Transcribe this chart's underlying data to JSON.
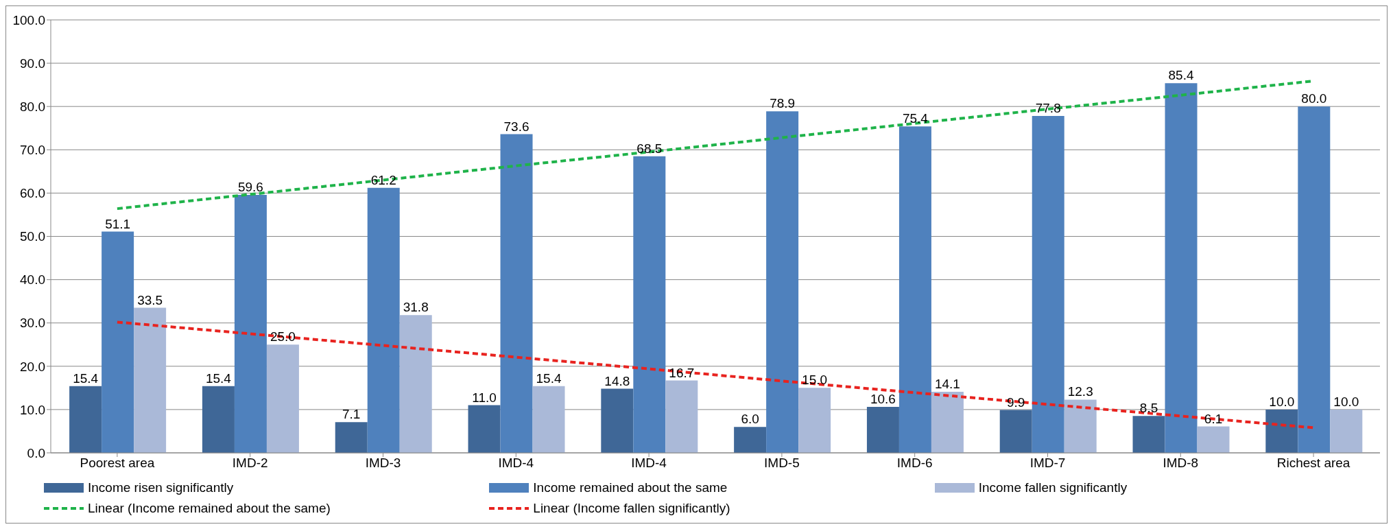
{
  "chart_data": {
    "type": "bar",
    "categories": [
      "Poorest area",
      "IMD-2",
      "IMD-3",
      "IMD-4",
      "IMD-4",
      "IMD-5",
      "IMD-6",
      "IMD-7",
      "IMD-8",
      "Richest area"
    ],
    "series": [
      {
        "name": "Income risen significantly",
        "color": "#3f6797",
        "values": [
          15.4,
          15.4,
          7.1,
          11.0,
          14.8,
          6.0,
          10.6,
          9.9,
          8.5,
          10.0
        ],
        "value_labels": [
          "15.4",
          "15.4",
          "7.1",
          "11.0",
          "14.8",
          "6.0",
          "10.6",
          "9.9",
          "8.5",
          "10.0"
        ]
      },
      {
        "name": "Income remained about the same",
        "color": "#4f81bd",
        "values": [
          51.1,
          59.6,
          61.2,
          73.6,
          68.5,
          78.9,
          75.4,
          77.8,
          85.4,
          80.0
        ],
        "value_labels": [
          "51.1",
          "59.6",
          "61.2",
          "73.6",
          "68.5",
          "78.9",
          "75.4",
          "77.8",
          "85.4",
          "80.0"
        ]
      },
      {
        "name": "Income fallen significantly",
        "color": "#aab9d8",
        "values": [
          33.5,
          25.0,
          31.8,
          15.4,
          16.7,
          15.0,
          14.1,
          12.3,
          6.1,
          10.0
        ],
        "value_labels": [
          "33.5",
          "25.0",
          "31.8",
          "15.4",
          "16.7",
          "15.0",
          "14.1",
          "12.3",
          "6.1",
          "10.0"
        ]
      },
      {
        "name": "Linear (Income remained about the same)",
        "type": "line",
        "color": "#1fb34a",
        "line_style": "dashed",
        "values": [
          56.4,
          59.7,
          63.0,
          66.3,
          69.5,
          72.8,
          76.1,
          79.4,
          82.6,
          85.9
        ]
      },
      {
        "name": "Linear (Income fallen significantly)",
        "type": "line",
        "color": "#e8231f",
        "line_style": "dashed",
        "values": [
          30.2,
          27.5,
          24.8,
          22.1,
          19.4,
          16.6,
          13.9,
          11.2,
          8.5,
          5.8
        ]
      }
    ],
    "ylim": [
      0,
      100
    ],
    "yticks": [
      {
        "value": 0,
        "label": "0.0"
      },
      {
        "value": 10,
        "label": "10.0"
      },
      {
        "value": 20,
        "label": "20.0"
      },
      {
        "value": 30,
        "label": "30.0"
      },
      {
        "value": 40,
        "label": "40.0"
      },
      {
        "value": 50,
        "label": "50.0"
      },
      {
        "value": 60,
        "label": "60.0"
      },
      {
        "value": 70,
        "label": "70.0"
      },
      {
        "value": 80,
        "label": "80.0"
      },
      {
        "value": 90,
        "label": "90.0"
      },
      {
        "value": 100,
        "label": "100.0"
      }
    ],
    "grid": "y",
    "legend": "bottom",
    "marker": "none"
  }
}
